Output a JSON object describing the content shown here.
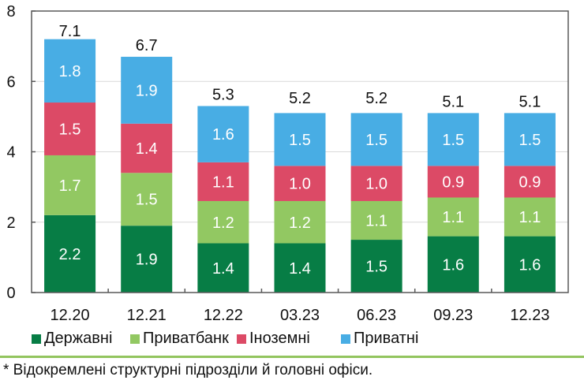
{
  "chart_data": {
    "type": "bar",
    "stacked": true,
    "title": "",
    "xlabel": "",
    "ylabel": "",
    "ylim": [
      0,
      8
    ],
    "yticks": [
      0,
      2,
      4,
      6,
      8
    ],
    "grid": true,
    "legend_position": "bottom",
    "categories": [
      "12.20",
      "12.21",
      "12.22",
      "03.23",
      "06.23",
      "09.23",
      "12.23"
    ],
    "series": [
      {
        "name": "Державні",
        "color": "#077d45",
        "values": [
          2.2,
          1.9,
          1.4,
          1.4,
          1.5,
          1.6,
          1.6
        ]
      },
      {
        "name": "Приватбанк",
        "color": "#92c862",
        "values": [
          1.7,
          1.5,
          1.2,
          1.2,
          1.1,
          1.1,
          1.1
        ]
      },
      {
        "name": "Іноземні",
        "color": "#dc4a66",
        "values": [
          1.5,
          1.4,
          1.1,
          1.0,
          1.0,
          0.9,
          0.9
        ]
      },
      {
        "name": "Приватні",
        "color": "#48ade4",
        "values": [
          1.8,
          1.9,
          1.6,
          1.5,
          1.5,
          1.5,
          1.5
        ]
      }
    ],
    "totals": [
      7.1,
      6.7,
      5.3,
      5.2,
      5.2,
      5.1,
      5.1
    ]
  },
  "footnote": "* Відокремлені структурні підрозділи й головні офіси."
}
